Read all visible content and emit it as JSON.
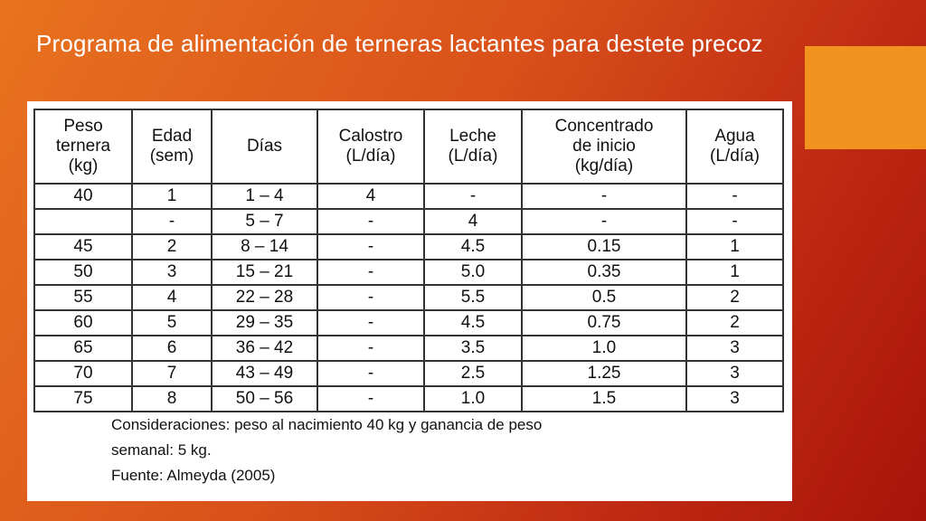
{
  "slide": {
    "title": "Programa de alimentación de terneras lactantes para destete precoz"
  },
  "table": {
    "headers": [
      [
        "Peso",
        "ternera",
        "(kg)"
      ],
      [
        "Edad",
        "(sem)"
      ],
      [
        "Días"
      ],
      [
        "Calostro",
        "(L/día)"
      ],
      [
        "Leche",
        "(L/día)"
      ],
      [
        "Concentrado",
        "de inicio",
        "(kg/día)"
      ],
      [
        "Agua",
        "(L/día)"
      ]
    ],
    "rows": [
      [
        "40",
        "1",
        "1 – 4",
        "4",
        "-",
        "-",
        "-"
      ],
      [
        "",
        "-",
        "5 – 7",
        "-",
        "4",
        "-",
        "-"
      ],
      [
        "45",
        "2",
        "8 – 14",
        "-",
        "4.5",
        "0.15",
        "1"
      ],
      [
        "50",
        "3",
        "15 – 21",
        "-",
        "5.0",
        "0.35",
        "1"
      ],
      [
        "55",
        "4",
        "22 – 28",
        "-",
        "5.5",
        "0.5",
        "2"
      ],
      [
        "60",
        "5",
        "29 – 35",
        "-",
        "4.5",
        "0.75",
        "2"
      ],
      [
        "65",
        "6",
        "36 – 42",
        "-",
        "3.5",
        "1.0",
        "3"
      ],
      [
        "70",
        "7",
        "43 – 49",
        "-",
        "2.5",
        "1.25",
        "3"
      ],
      [
        "75",
        "8",
        "50 – 56",
        "-",
        "1.0",
        "1.5",
        "3"
      ]
    ]
  },
  "notes": {
    "line1": "Consideraciones: peso al nacimiento  40 kg y ganancia de peso",
    "line2": "semanal: 5 kg.",
    "line3": "Fuente: Almeyda (2005)"
  }
}
